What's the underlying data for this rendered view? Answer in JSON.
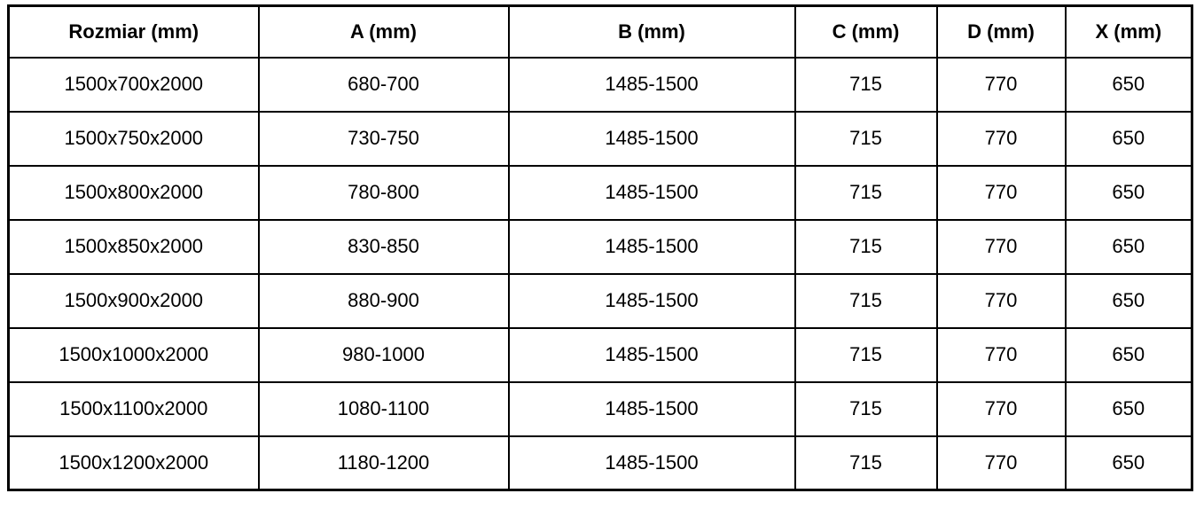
{
  "colors": {
    "border": "#000000",
    "background": "#ffffff",
    "text": "#000000"
  },
  "table": {
    "columns": [
      "Rozmiar (mm)",
      "A (mm)",
      "B (mm)",
      "C (mm)",
      "D (mm)",
      "X (mm)"
    ],
    "rows": [
      [
        "1500x700x2000",
        "680-700",
        "1485-1500",
        "715",
        "770",
        "650"
      ],
      [
        "1500x750x2000",
        "730-750",
        "1485-1500",
        "715",
        "770",
        "650"
      ],
      [
        "1500x800x2000",
        "780-800",
        "1485-1500",
        "715",
        "770",
        "650"
      ],
      [
        "1500x850x2000",
        "830-850",
        "1485-1500",
        "715",
        "770",
        "650"
      ],
      [
        "1500x900x2000",
        "880-900",
        "1485-1500",
        "715",
        "770",
        "650"
      ],
      [
        "1500x1000x2000",
        "980-1000",
        "1485-1500",
        "715",
        "770",
        "650"
      ],
      [
        "1500x1100x2000",
        "1080-1100",
        "1485-1500",
        "715",
        "770",
        "650"
      ],
      [
        "1500x1200x2000",
        "1180-1200",
        "1485-1500",
        "715",
        "770",
        "650"
      ]
    ]
  },
  "chart_data": {
    "type": "table",
    "title": "",
    "columns": [
      "Rozmiar (mm)",
      "A (mm)",
      "B (mm)",
      "C (mm)",
      "D (mm)",
      "X (mm)"
    ],
    "rows": [
      [
        "1500x700x2000",
        "680-700",
        "1485-1500",
        "715",
        "770",
        "650"
      ],
      [
        "1500x750x2000",
        "730-750",
        "1485-1500",
        "715",
        "770",
        "650"
      ],
      [
        "1500x800x2000",
        "780-800",
        "1485-1500",
        "715",
        "770",
        "650"
      ],
      [
        "1500x850x2000",
        "830-850",
        "1485-1500",
        "715",
        "770",
        "650"
      ],
      [
        "1500x900x2000",
        "880-900",
        "1485-1500",
        "715",
        "770",
        "650"
      ],
      [
        "1500x1000x2000",
        "980-1000",
        "1485-1500",
        "715",
        "770",
        "650"
      ],
      [
        "1500x1100x2000",
        "1080-1100",
        "1485-1500",
        "715",
        "770",
        "650"
      ],
      [
        "1500x1200x2000",
        "1180-1200",
        "1485-1500",
        "715",
        "770",
        "650"
      ]
    ]
  }
}
